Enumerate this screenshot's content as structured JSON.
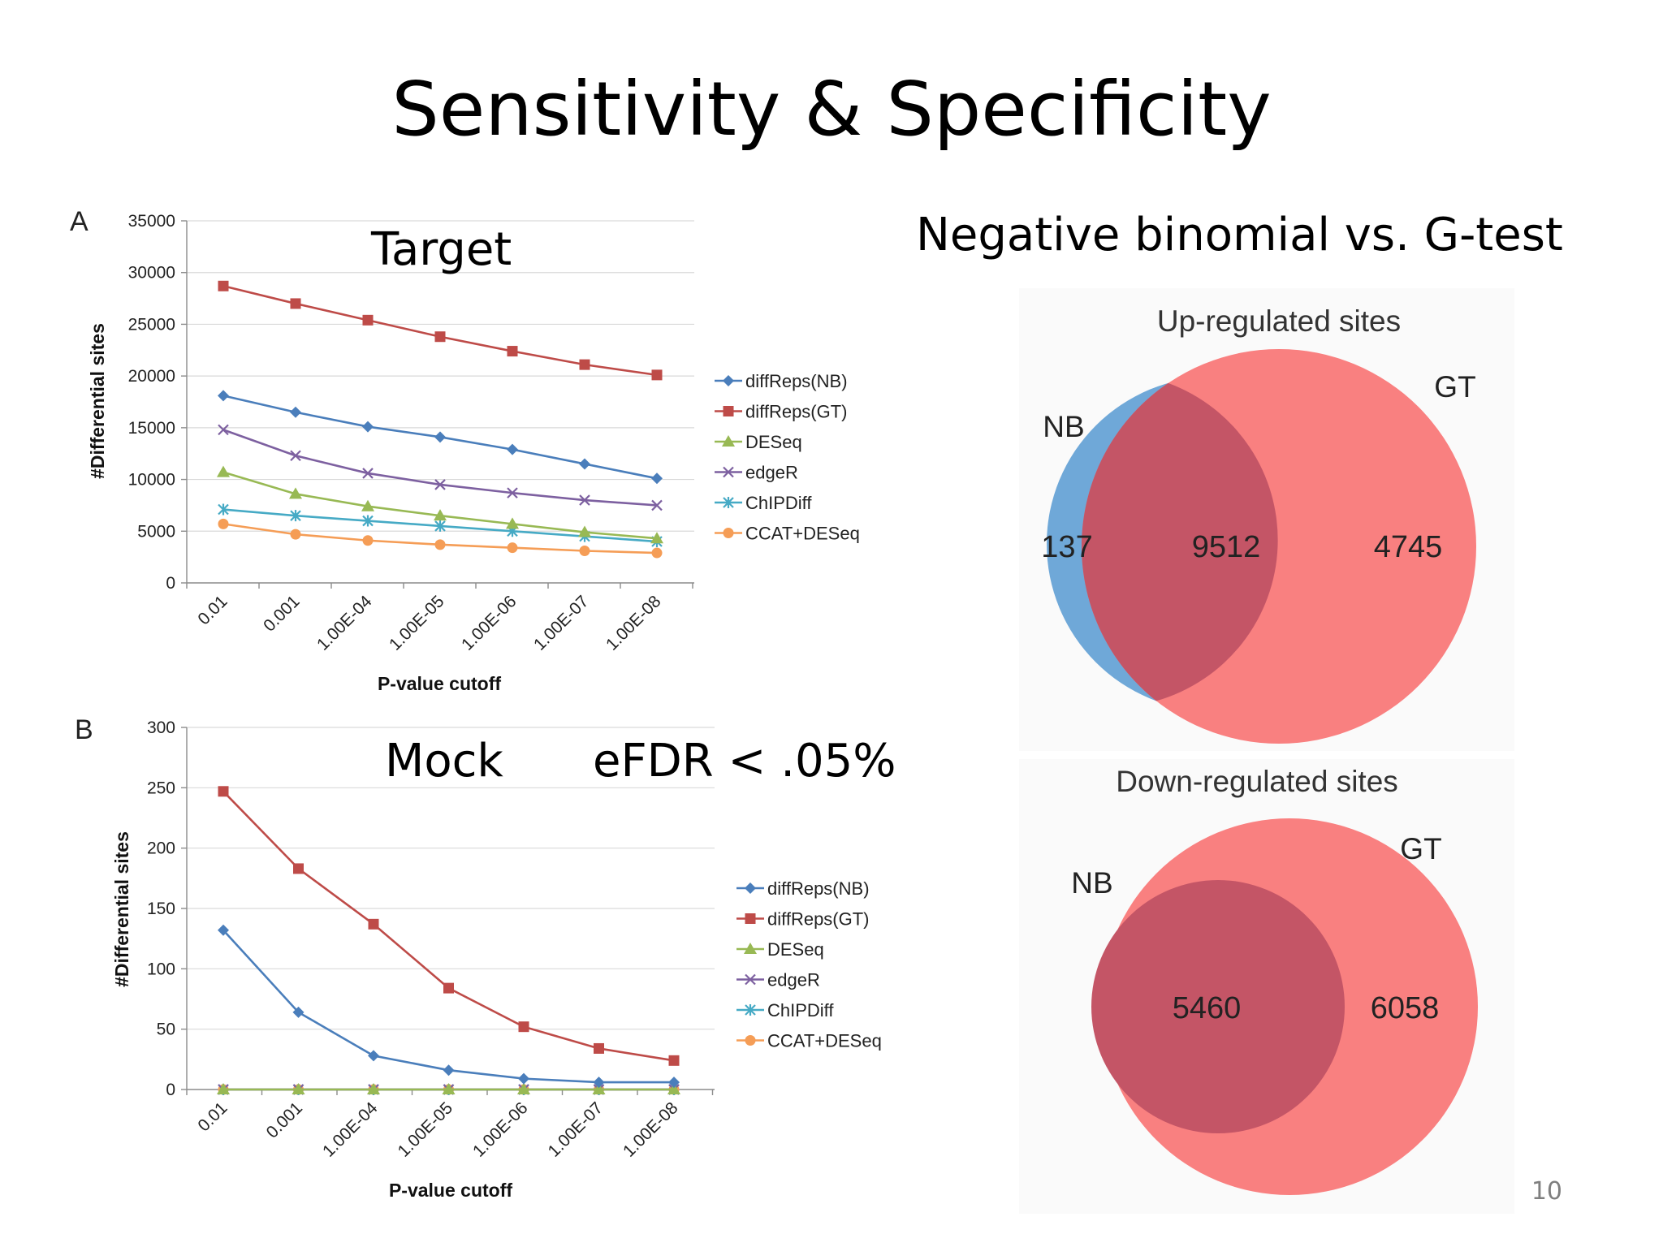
{
  "slide": {
    "title": "Sensitivity & Specificity",
    "page_number": "10",
    "overlay_target": "Target",
    "overlay_mock": "Mock",
    "overlay_efdr": "eFDR < .05%",
    "overlay_right_title": "Negative binomial vs. G-test"
  },
  "colors": {
    "diffReps(NB)": "#4a7ebb",
    "diffReps(GT)": "#be4b48",
    "DESeq": "#98b954",
    "edgeR": "#7d60a0",
    "ChIPDiff": "#46aac5",
    "CCAT+DESeq": "#f59d56",
    "venn_nb": "#6fa8d8",
    "venn_gt": "#f98080",
    "venn_overlap": "#c45566"
  },
  "chart_data": [
    {
      "type": "line",
      "panel_label": "A",
      "xlabel": "P-value cutoff",
      "ylabel": "#Differential sites",
      "categories": [
        "0.01",
        "0.001",
        "1.00E-04",
        "1.00E-05",
        "1.00E-06",
        "1.00E-07",
        "1.00E-08"
      ],
      "ylim": [
        0,
        35000
      ],
      "yticks": [
        "0",
        "5000",
        "10000",
        "15000",
        "20000",
        "25000",
        "30000",
        "35000"
      ],
      "grid": true,
      "legend_position": "right",
      "series": [
        {
          "name": "diffReps(NB)",
          "marker": "diamond",
          "values": [
            18100,
            16500,
            15100,
            14100,
            12900,
            11500,
            10100
          ]
        },
        {
          "name": "diffReps(GT)",
          "marker": "square",
          "values": [
            28700,
            27000,
            25400,
            23800,
            22400,
            21100,
            20100
          ]
        },
        {
          "name": "DESeq",
          "marker": "triangle",
          "values": [
            10700,
            8600,
            7400,
            6500,
            5700,
            4900,
            4300
          ]
        },
        {
          "name": "edgeR",
          "marker": "x",
          "values": [
            14800,
            12300,
            10600,
            9500,
            8700,
            8000,
            7500
          ]
        },
        {
          "name": "ChIPDiff",
          "marker": "star",
          "values": [
            7100,
            6500,
            6000,
            5500,
            5000,
            4500,
            4000
          ]
        },
        {
          "name": "CCAT+DESeq",
          "marker": "circle",
          "values": [
            5700,
            4700,
            4100,
            3700,
            3400,
            3100,
            2900
          ]
        }
      ]
    },
    {
      "type": "line",
      "panel_label": "B",
      "xlabel": "P-value cutoff",
      "ylabel": "#Differential sites",
      "categories": [
        "0.01",
        "0.001",
        "1.00E-04",
        "1.00E-05",
        "1.00E-06",
        "1.00E-07",
        "1.00E-08"
      ],
      "ylim": [
        0,
        300
      ],
      "yticks": [
        "0",
        "50",
        "100",
        "150",
        "200",
        "250",
        "300"
      ],
      "grid": true,
      "legend_position": "right",
      "series": [
        {
          "name": "diffReps(NB)",
          "marker": "diamond",
          "values": [
            132,
            64,
            28,
            16,
            9,
            6,
            6
          ]
        },
        {
          "name": "diffReps(GT)",
          "marker": "square",
          "values": [
            247,
            183,
            137,
            84,
            52,
            34,
            24
          ]
        },
        {
          "name": "DESeq",
          "marker": "triangle",
          "values": [
            0,
            0,
            0,
            0,
            0,
            0,
            0
          ]
        },
        {
          "name": "edgeR",
          "marker": "x",
          "values": [
            0,
            0,
            0,
            0,
            0,
            0,
            0
          ]
        },
        {
          "name": "ChIPDiff",
          "marker": "star",
          "values": [
            0,
            0,
            0,
            0,
            0,
            0,
            0
          ]
        },
        {
          "name": "CCAT+DESeq",
          "marker": "circle",
          "values": [
            0,
            0,
            0,
            0,
            0,
            0,
            0
          ]
        }
      ]
    }
  ],
  "venn": [
    {
      "title": "Up-regulated sites",
      "left_label": "NB",
      "right_label": "GT",
      "left_only": "137",
      "overlap": "9512",
      "right_only": "4745"
    },
    {
      "title": "Down-regulated sites",
      "left_label": "NB",
      "right_label": "GT",
      "overlap": "5460",
      "right_only": "6058"
    }
  ]
}
